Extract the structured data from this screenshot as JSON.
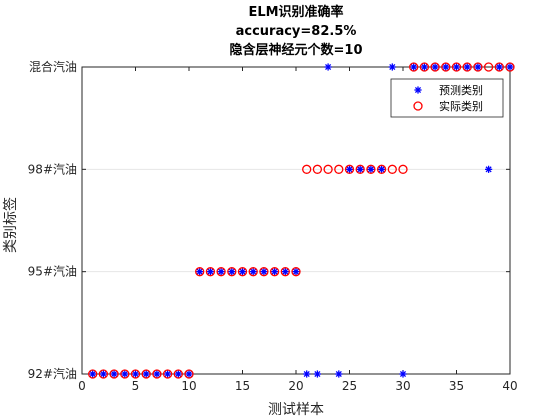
{
  "chart_data": {
    "type": "scatter",
    "title": [
      "ELM识别准确率",
      "accuracy=82.5%",
      "隐含层神经元个数=10"
    ],
    "xlabel": "测试样本",
    "ylabel": "类别标签",
    "xlim": [
      0,
      40
    ],
    "ylim": [
      1,
      4
    ],
    "xticks": [
      0,
      5,
      10,
      15,
      20,
      25,
      30,
      35,
      40
    ],
    "yticks": [
      1,
      2,
      3,
      4
    ],
    "ytick_labels": [
      "92#汽油",
      "95#汽油",
      "98#汽油",
      "混合汽油"
    ],
    "grid": "horizontal",
    "legend_position": "top-right",
    "series": [
      {
        "name": "预测类别",
        "marker": "asterisk",
        "color": "#0000ff",
        "x": [
          1,
          2,
          3,
          4,
          5,
          6,
          7,
          8,
          9,
          10,
          11,
          12,
          13,
          14,
          15,
          16,
          17,
          18,
          19,
          20,
          21,
          22,
          23,
          24,
          25,
          26,
          27,
          28,
          29,
          30,
          31,
          32,
          33,
          34,
          35,
          36,
          37,
          38,
          39,
          40
        ],
        "y": [
          1,
          1,
          1,
          1,
          1,
          1,
          1,
          1,
          1,
          1,
          2,
          2,
          2,
          2,
          2,
          2,
          2,
          2,
          2,
          2,
          1,
          1,
          4,
          1,
          3,
          3,
          3,
          3,
          4,
          1,
          4,
          4,
          4,
          4,
          4,
          4,
          4,
          3,
          4,
          4
        ]
      },
      {
        "name": "实际类别",
        "marker": "circle",
        "color": "#ff0000",
        "x": [
          1,
          2,
          3,
          4,
          5,
          6,
          7,
          8,
          9,
          10,
          11,
          12,
          13,
          14,
          15,
          16,
          17,
          18,
          19,
          20,
          21,
          22,
          23,
          24,
          25,
          26,
          27,
          28,
          29,
          30,
          31,
          32,
          33,
          34,
          35,
          36,
          37,
          38,
          39,
          40
        ],
        "y": [
          1,
          1,
          1,
          1,
          1,
          1,
          1,
          1,
          1,
          1,
          2,
          2,
          2,
          2,
          2,
          2,
          2,
          2,
          2,
          2,
          3,
          3,
          3,
          3,
          3,
          3,
          3,
          3,
          3,
          3,
          4,
          4,
          4,
          4,
          4,
          4,
          4,
          4,
          4,
          4
        ]
      }
    ]
  }
}
